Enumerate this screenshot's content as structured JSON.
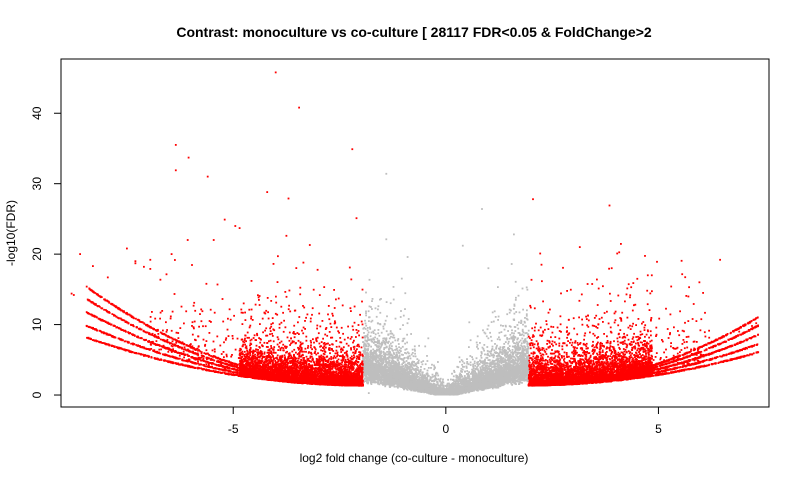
{
  "chart_data": {
    "type": "scatter",
    "title": "Contrast: monoculture vs co-culture [ 28117 FDR<0.05 & FoldChange>2",
    "xlabel": "log2 fold change (co-culture - monoculture)",
    "ylabel": "-log10(FDR)",
    "xlim": [
      -9.05,
      7.6
    ],
    "ylim": [
      -1.7,
      47.7
    ],
    "xticks": [
      -5,
      0,
      5
    ],
    "yticks": [
      0,
      10,
      20,
      30,
      40
    ],
    "grid": false,
    "legend": "none",
    "colors": {
      "significant": "#ff0000",
      "not_significant": "#bebebe",
      "significant_dark": "#c00000"
    },
    "significance_rule": {
      "fdr": 0.05,
      "abs_log2fc": 1.95
    },
    "highlighted_points": {
      "significant": [
        [
          -4.0,
          45.8
        ],
        [
          -3.45,
          40.8
        ],
        [
          -6.35,
          35.5
        ],
        [
          -6.05,
          33.7
        ],
        [
          -6.35,
          31.9
        ],
        [
          -5.6,
          31.0
        ],
        [
          -2.2,
          34.9
        ],
        [
          -4.2,
          28.8
        ],
        [
          -3.7,
          27.9
        ],
        [
          -2.1,
          25.1
        ],
        [
          -5.2,
          24.9
        ],
        [
          -4.85,
          23.7
        ],
        [
          -4.95,
          24.0
        ],
        [
          -3.75,
          22.6
        ],
        [
          -3.2,
          21.3
        ],
        [
          -8.6,
          20.0
        ],
        [
          -7.5,
          20.8
        ],
        [
          -6.95,
          19.2
        ],
        [
          -7.3,
          19.0
        ],
        [
          -6.45,
          20.0
        ],
        [
          -7.3,
          18.7
        ],
        [
          -8.3,
          18.3
        ],
        [
          -7.1,
          18.2
        ],
        [
          -6.95,
          17.9
        ],
        [
          -7.95,
          16.7
        ],
        [
          -8.8,
          14.4
        ],
        [
          -8.75,
          14.2
        ],
        [
          -3.95,
          19.7
        ],
        [
          -3.35,
          18.8
        ],
        [
          2.05,
          27.8
        ],
        [
          3.85,
          26.9
        ],
        [
          3.15,
          21.0
        ],
        [
          4.75,
          17.0
        ],
        [
          6.45,
          19.2
        ],
        [
          3.9,
          18.0
        ],
        [
          2.25,
          18.5
        ],
        [
          5.3,
          15.4
        ],
        [
          6.05,
          14.5
        ],
        [
          7.3,
          10.2
        ],
        [
          7.2,
          9.8
        ],
        [
          6.9,
          9.0
        ]
      ],
      "not_significant": [
        [
          -1.4,
          31.4
        ],
        [
          0.85,
          26.4
        ],
        [
          -1.4,
          22.1
        ],
        [
          1.6,
          22.8
        ],
        [
          0.4,
          21.2
        ],
        [
          -0.9,
          19.6
        ],
        [
          1.0,
          18.0
        ],
        [
          1.55,
          18.6
        ]
      ]
    },
    "point_density": [
      {
        "class": "significant",
        "x_range": [
          -8.5,
          -1.95
        ],
        "approx_points": 9000
      },
      {
        "class": "significant",
        "x_range": [
          1.95,
          7.3
        ],
        "approx_points": 9000
      },
      {
        "class": "not_significant",
        "x_range": [
          -1.95,
          1.95
        ],
        "approx_points": 8000
      }
    ]
  }
}
